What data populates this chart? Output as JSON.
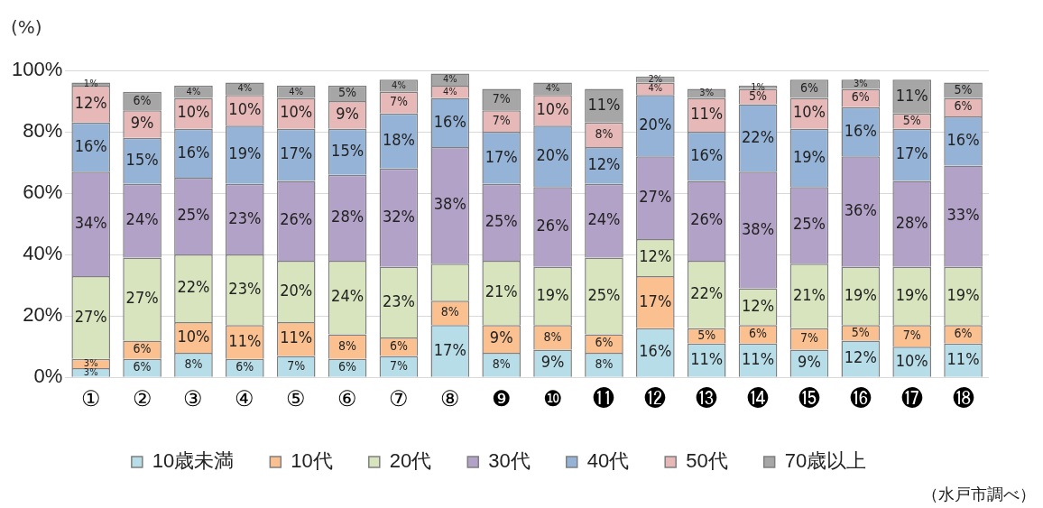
{
  "chart_data": {
    "type": "bar",
    "stacked": true,
    "ylabel": "(%)",
    "categories": [
      "①",
      "②",
      "③",
      "④",
      "⑤",
      "⑥",
      "⑦",
      "⑧",
      "❾",
      "❿",
      "⓫",
      "⓬",
      "⓭",
      "⓮",
      "⓯",
      "⓰",
      "⓱",
      "⓲"
    ],
    "ylim": [
      0,
      100
    ],
    "yticks": [
      {
        "value": 0,
        "label": "0%"
      },
      {
        "value": 20,
        "label": "20%"
      },
      {
        "value": 40,
        "label": "40%"
      },
      {
        "value": 60,
        "label": "60%"
      },
      {
        "value": 80,
        "label": "80%"
      },
      {
        "value": 100,
        "label": "100%"
      }
    ],
    "grid": "y",
    "legend": "bottom",
    "series": [
      {
        "name": "10歳未満",
        "color": "#b7dde8",
        "values": [
          3,
          6,
          8,
          6,
          7,
          6,
          7,
          17,
          8,
          9,
          8,
          16,
          11,
          11,
          9,
          12,
          10,
          11
        ],
        "value_labels": [
          "3%",
          "6%",
          "8%",
          "6%",
          "7%",
          "6%",
          "7%",
          "17%",
          "8%",
          "9%",
          "8%",
          "16%",
          "11%",
          "11%",
          "9%",
          "12%",
          "10%",
          "11%"
        ]
      },
      {
        "name": "10代",
        "color": "#fac090",
        "values": [
          3,
          6,
          10,
          11,
          11,
          8,
          6,
          8,
          9,
          8,
          6,
          17,
          5,
          6,
          7,
          5,
          7,
          6
        ],
        "value_labels": [
          "3%",
          "6%",
          "10%",
          "11%",
          "11%",
          "8%",
          "6%",
          "8%",
          "9%",
          "8%",
          "6%",
          "17%",
          "5%",
          "6%",
          "7%",
          "5%",
          "7%",
          "6%"
        ]
      },
      {
        "name": "20代",
        "color": "#d7e4bd",
        "values": [
          27,
          27,
          22,
          23,
          20,
          24,
          23,
          12,
          21,
          19,
          25,
          12,
          22,
          12,
          21,
          19,
          19,
          19
        ],
        "value_labels": [
          "27%",
          "27%",
          "22%",
          "23%",
          "20%",
          "24%",
          "23%",
          null,
          "21%",
          "19%",
          "25%",
          "12%",
          "22%",
          "12%",
          "21%",
          "19%",
          "19%",
          "19%"
        ]
      },
      {
        "name": "30代",
        "color": "#b3a2c7",
        "values": [
          34,
          24,
          25,
          23,
          26,
          28,
          32,
          38,
          25,
          26,
          24,
          27,
          26,
          38,
          25,
          36,
          28,
          33
        ],
        "value_labels": [
          "34%",
          "24%",
          "25%",
          "23%",
          "26%",
          "28%",
          "32%",
          "38%",
          "25%",
          "26%",
          "24%",
          "27%",
          "26%",
          "38%",
          "25%",
          "36%",
          "28%",
          "33%"
        ]
      },
      {
        "name": "40代",
        "color": "#95b3d7",
        "values": [
          16,
          15,
          16,
          19,
          17,
          15,
          18,
          16,
          17,
          20,
          12,
          20,
          16,
          22,
          19,
          16,
          17,
          16
        ],
        "value_labels": [
          "16%",
          "15%",
          "16%",
          "19%",
          "17%",
          "15%",
          "18%",
          "16%",
          "17%",
          "20%",
          "12%",
          "20%",
          "16%",
          "22%",
          "19%",
          "16%",
          "17%",
          "16%"
        ]
      },
      {
        "name": "50代",
        "color": "#e6b9b8",
        "values": [
          12,
          9,
          10,
          10,
          10,
          9,
          7,
          4,
          7,
          10,
          8,
          4,
          11,
          5,
          10,
          6,
          5,
          6
        ],
        "value_labels": [
          "12%",
          "9%",
          "10%",
          "10%",
          "10%",
          "9%",
          "7%",
          "4%",
          "7%",
          "10%",
          "8%",
          "4%",
          "11%",
          "5%",
          "10%",
          "6%",
          "5%",
          "6%"
        ]
      },
      {
        "name": "70歳以上",
        "color": "#a6a6a6",
        "values": [
          1,
          6,
          4,
          4,
          4,
          5,
          4,
          4,
          7,
          4,
          11,
          2,
          3,
          1,
          6,
          3,
          11,
          5
        ],
        "value_labels": [
          "1%",
          "6%",
          "4%",
          "4%",
          "4%",
          "5%",
          "4%",
          "4%",
          "7%",
          "4%",
          "11%",
          "2%",
          "3%",
          "1%",
          "6%",
          "3%",
          "11%",
          "5%"
        ]
      }
    ],
    "annotations": [
      "（水戸市調べ）"
    ]
  }
}
